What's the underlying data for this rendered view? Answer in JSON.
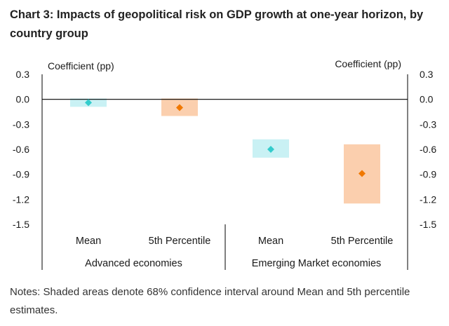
{
  "title": "Chart 3: Impacts of geopolitical risk on GDP growth at one-year horizon, by country group",
  "notes": "Notes: Shaded areas denote 68% confidence interval around Mean and 5th percentile estimates.",
  "chart_data": {
    "type": "scatter",
    "title": "Chart 3: Impacts of geopolitical risk on GDP growth at one-year horizon, by country group",
    "ylabel_left": "Coefficient (pp)",
    "ylabel_right": "Coefficient (pp)",
    "ylim": [
      -1.5,
      0.3
    ],
    "yticks": [
      0.3,
      0.0,
      -0.3,
      -0.6,
      -0.9,
      -1.2,
      -1.5
    ],
    "ytick_labels": [
      "0.3",
      "0.0",
      "-0.3",
      "-0.6",
      "-0.9",
      "-1.2",
      "-1.5"
    ],
    "groups": [
      "Advanced economies",
      "Emerging Market economies"
    ],
    "categories": [
      "Mean",
      "5th Percentile",
      "Mean",
      "5th Percentile"
    ],
    "points": [
      {
        "group": "Advanced economies",
        "category": "Mean",
        "value": -0.04,
        "ci_low": -0.09,
        "ci_high": 0.01,
        "color": "#33CCCC",
        "band_color": "#C9F1F4"
      },
      {
        "group": "Advanced economies",
        "category": "5th Percentile",
        "value": -0.1,
        "ci_low": -0.2,
        "ci_high": 0.01,
        "color": "#F07800",
        "band_color": "#FBCFAE"
      },
      {
        "group": "Emerging Market economies",
        "category": "Mean",
        "value": -0.6,
        "ci_low": -0.7,
        "ci_high": -0.48,
        "color": "#33CCCC",
        "band_color": "#C9F1F4"
      },
      {
        "group": "Emerging Market economies",
        "category": "5th Percentile",
        "value": -0.89,
        "ci_low": -1.25,
        "ci_high": -0.54,
        "color": "#F07800",
        "band_color": "#FBCFAE"
      }
    ],
    "grid": false,
    "legend": "none"
  }
}
